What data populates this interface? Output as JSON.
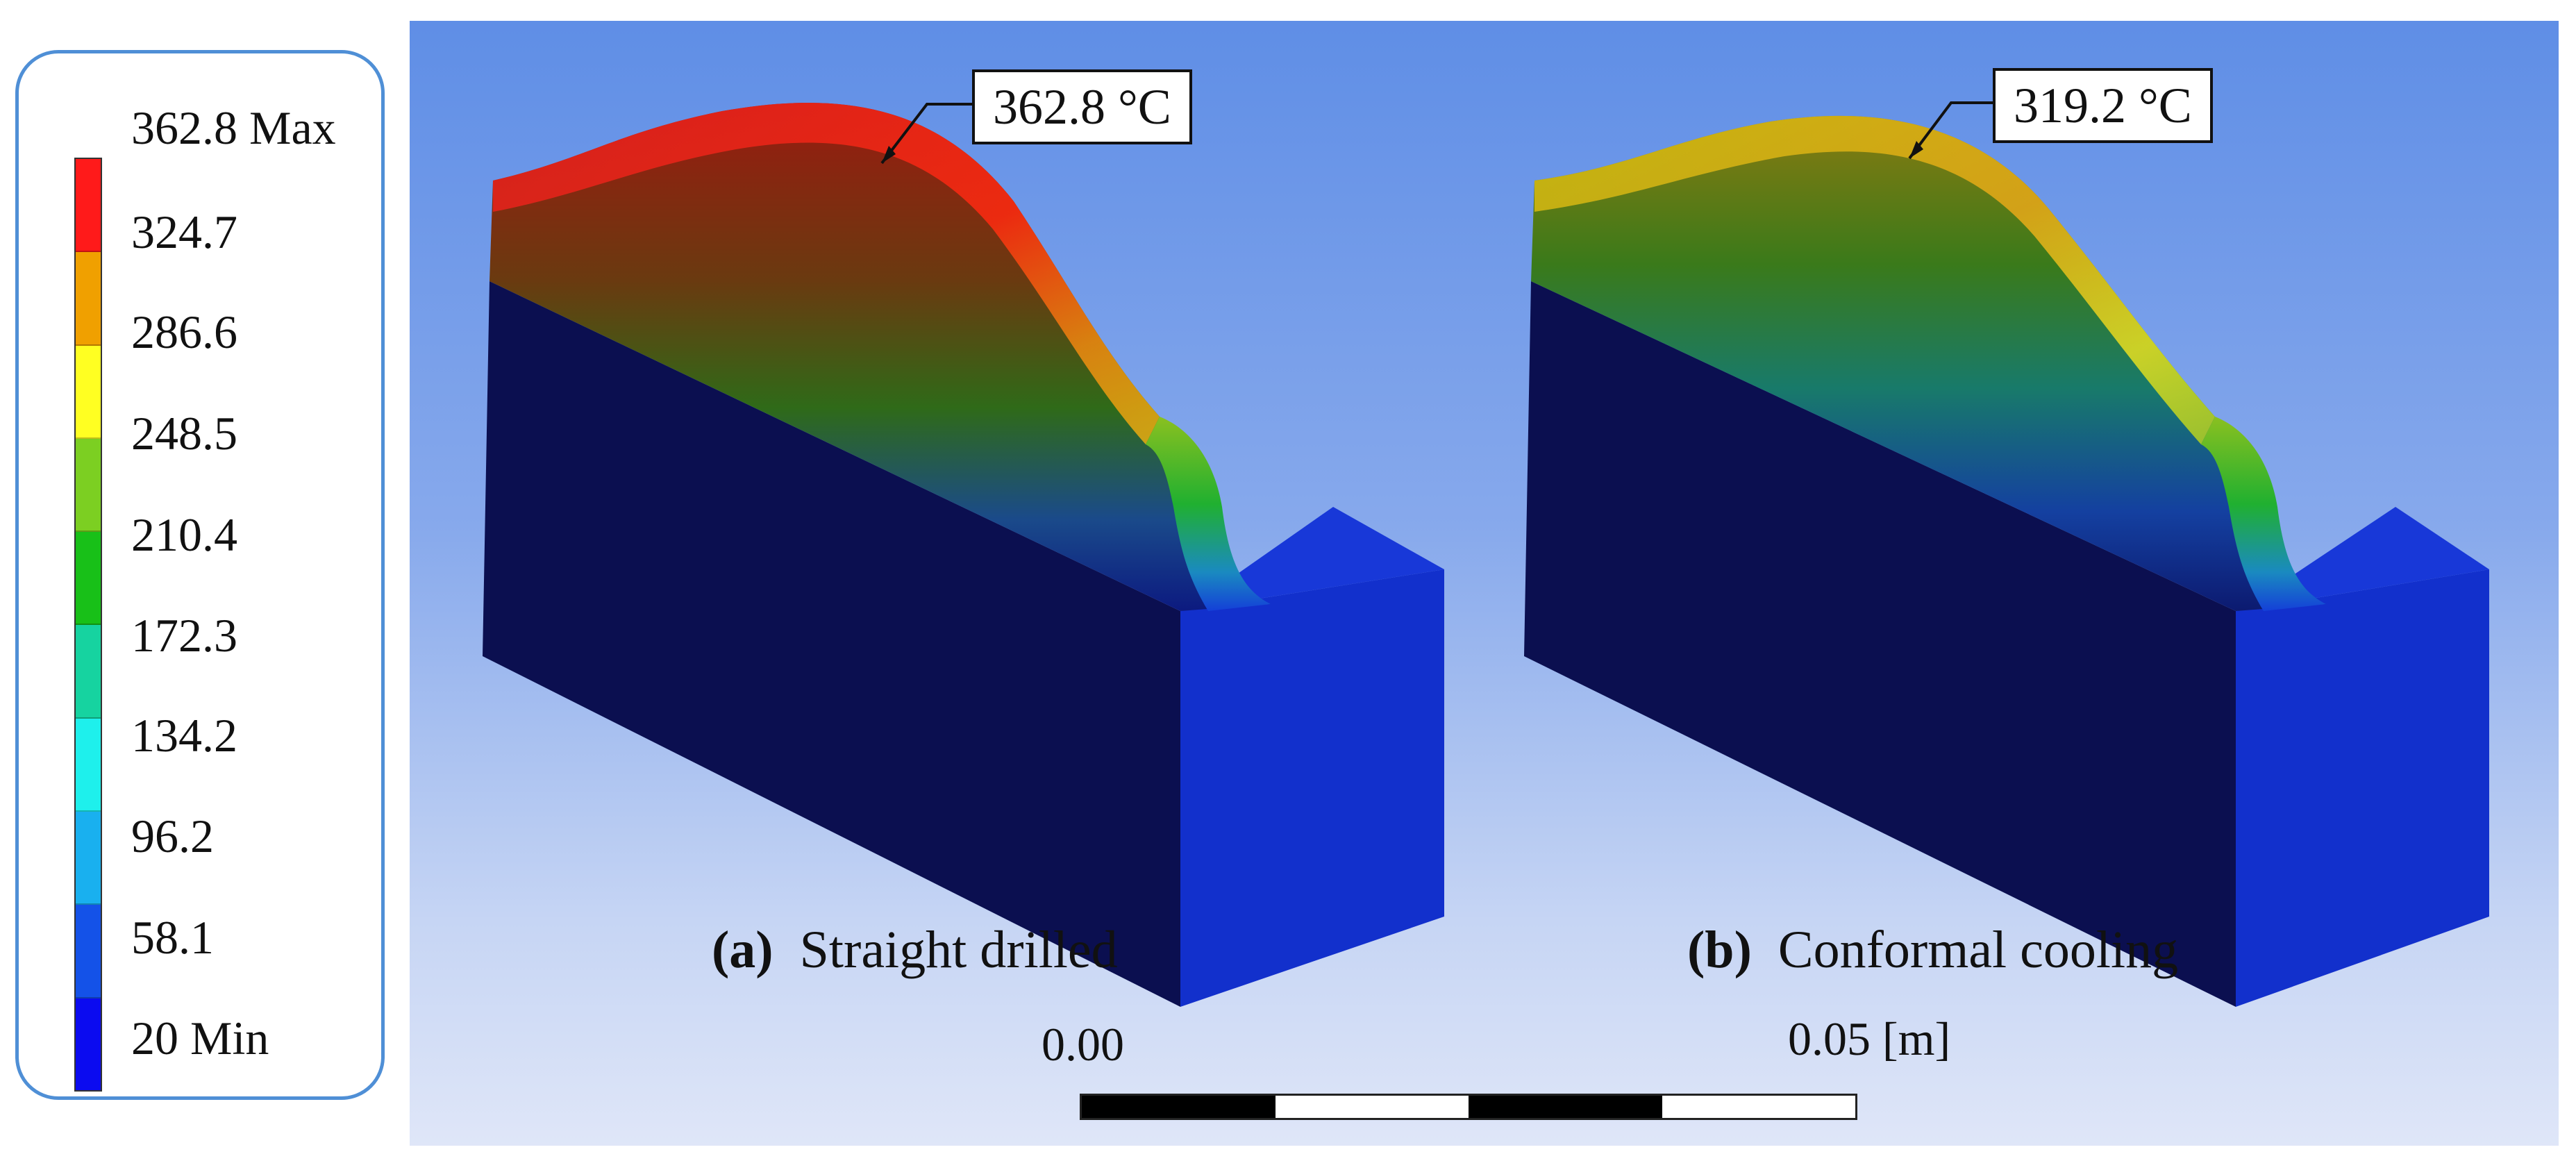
{
  "legend": {
    "labels": [
      "362.8 Max",
      "324.7",
      "286.6",
      "248.5",
      "210.4",
      "172.3",
      "134.2",
      "96.2",
      "58.1",
      "20 Min"
    ],
    "colors": [
      "#ff1a1a",
      "#f0a000",
      "#ffff22",
      "#7ccf22",
      "#18c018",
      "#16d3a0",
      "#1ef0ec",
      "#19b0ef",
      "#1452e8",
      "#0b0bf0"
    ]
  },
  "panel_a": {
    "max_callout": "362.8 °C",
    "caption_letter": "(a)",
    "caption_text": "Straight drilled"
  },
  "panel_b": {
    "max_callout": "319.2 °C",
    "caption_letter": "(b)",
    "caption_text": "Conformal cooling"
  },
  "scale": {
    "start_label": "0.00",
    "end_label": "0.05 [m]"
  },
  "colors": {
    "viewport_top": "#5f8ee6",
    "block_dark": "#0a0f55",
    "block_side": "#1234d0",
    "legend_border": "#4f8fd6"
  }
}
